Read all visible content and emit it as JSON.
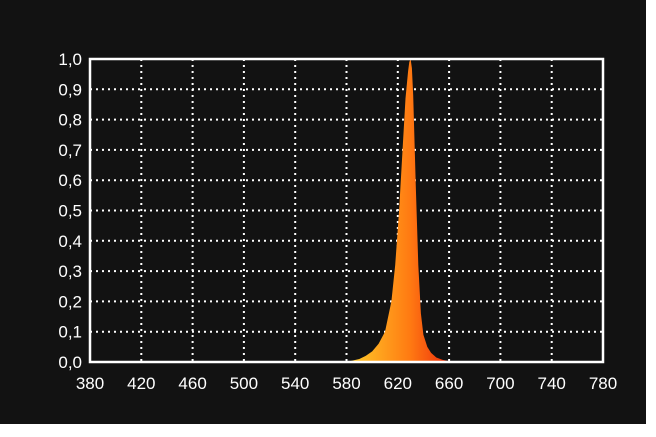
{
  "chart_data": {
    "type": "area",
    "title": "",
    "xlabel": "",
    "ylabel": "",
    "xlim": [
      380,
      780
    ],
    "ylim": [
      0.0,
      1.0
    ],
    "grid": true,
    "x_ticks": [
      "380",
      "420",
      "460",
      "500",
      "540",
      "580",
      "620",
      "660",
      "700",
      "740",
      "780"
    ],
    "y_ticks": [
      "0,0",
      "0,1",
      "0,2",
      "0,3",
      "0,4",
      "0,5",
      "0,6",
      "0,7",
      "0,8",
      "0,9",
      "1,0"
    ],
    "series": [
      {
        "x": [
          580,
          585,
          590,
          595,
          600,
          605,
          610,
          615,
          618,
          621,
          624,
          626,
          628,
          629,
          630,
          631,
          632,
          634,
          636,
          638,
          640,
          643,
          646,
          650,
          655,
          660,
          670
        ],
        "y": [
          0.0,
          0.005,
          0.01,
          0.02,
          0.035,
          0.06,
          0.1,
          0.2,
          0.32,
          0.5,
          0.72,
          0.87,
          0.96,
          0.99,
          1.0,
          0.97,
          0.88,
          0.58,
          0.32,
          0.16,
          0.09,
          0.05,
          0.03,
          0.015,
          0.007,
          0.003,
          0.0
        ]
      }
    ]
  },
  "colors": {
    "background": "#121212",
    "frame": "#ffffff",
    "grid": "#ffffff",
    "fill_low": "#ffd02a",
    "fill_high": "#e8140a"
  }
}
